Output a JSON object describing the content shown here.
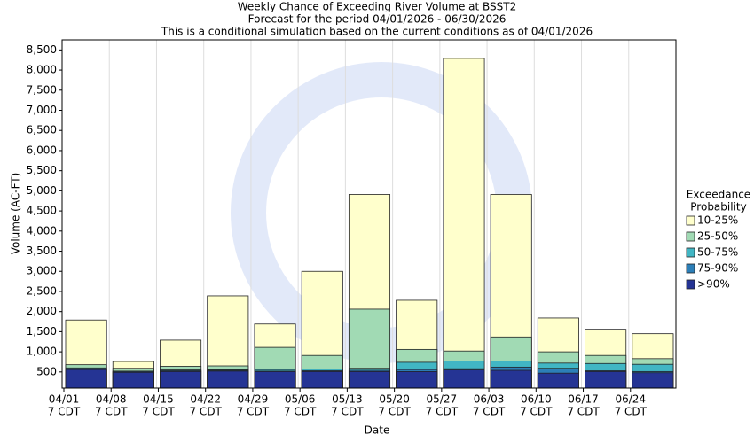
{
  "chart_data": {
    "type": "bar",
    "title": "Weekly Chance of Exceeding River Volume at BSST2",
    "subtitle": "Forecast for the period 04/01/2026 - 06/30/2026",
    "note": "This is a conditional simulation based on the current conditions as of 04/01/2026",
    "x_label": "Date",
    "y_label": "Volume (AC-FT)",
    "categories": [
      "04/01",
      "04/08",
      "04/15",
      "04/22",
      "04/29",
      "05/06",
      "05/13",
      "05/20",
      "05/27",
      "06/03",
      "06/10",
      "06/17",
      "06/24"
    ],
    "category_time": "7 CDT",
    "legend_title": [
      "Exceedance",
      "Probability"
    ],
    "legend": "right",
    "series": [
      {
        "name": "10-25%",
        "color": "#ffffcc",
        "values": [
          1790,
          760,
          1290,
          2390,
          1690,
          3000,
          4910,
          2280,
          8290,
          4910,
          1840,
          1560,
          1450
        ]
      },
      {
        "name": "25-50%",
        "color": "#a1dab4",
        "values": [
          680,
          590,
          640,
          650,
          1110,
          910,
          2060,
          1060,
          1020,
          1370,
          1000,
          910,
          830
        ]
      },
      {
        "name": "50-75%",
        "color": "#41b6c4",
        "values": [
          600,
          520,
          550,
          560,
          560,
          570,
          590,
          740,
          770,
          770,
          720,
          710,
          690
        ]
      },
      {
        "name": "75-90%",
        "color": "#2c7fb8",
        "values": [
          580,
          510,
          530,
          540,
          520,
          530,
          540,
          560,
          580,
          620,
          590,
          530,
          510
        ]
      },
      {
        "name": ">90%",
        "color": "#253494",
        "values": [
          560,
          490,
          510,
          520,
          510,
          510,
          510,
          510,
          550,
          540,
          470,
          510,
          480
        ]
      }
    ],
    "ylim": [
      100,
      8750
    ],
    "yticks": [
      {
        "value": 500,
        "label": "500"
      },
      {
        "value": 1000,
        "label": "1,000"
      },
      {
        "value": 1500,
        "label": "1,500"
      },
      {
        "value": 2000,
        "label": "2,000"
      },
      {
        "value": 2500,
        "label": "2,500"
      },
      {
        "value": 3000,
        "label": "3,000"
      },
      {
        "value": 3500,
        "label": "3,500"
      },
      {
        "value": 4000,
        "label": "4,000"
      },
      {
        "value": 4500,
        "label": "4,500"
      },
      {
        "value": 5000,
        "label": "5,000"
      },
      {
        "value": 5500,
        "label": "5,500"
      },
      {
        "value": 6000,
        "label": "6,000"
      },
      {
        "value": 6500,
        "label": "6,500"
      },
      {
        "value": 7000,
        "label": "7,000"
      },
      {
        "value": 7500,
        "label": "7,500"
      },
      {
        "value": 8000,
        "label": "8,000"
      },
      {
        "value": 8500,
        "label": "8,500"
      }
    ]
  }
}
